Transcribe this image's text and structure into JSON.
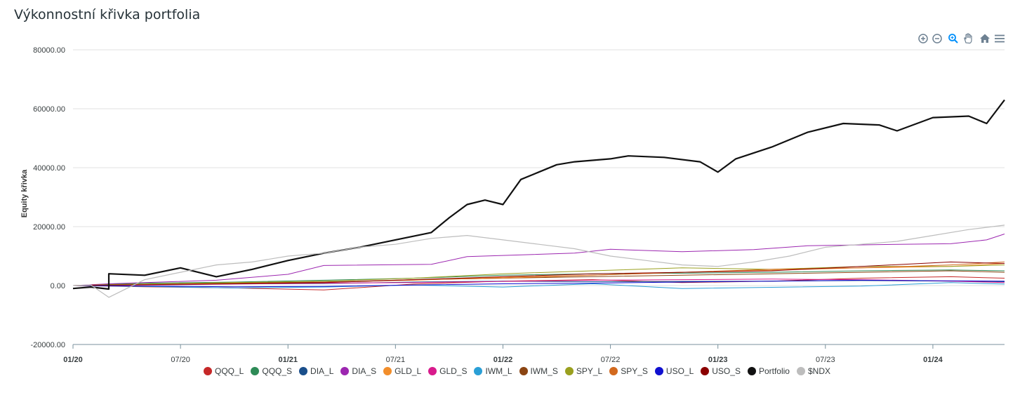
{
  "page": {
    "title": "Výkonnostní křivka portfolia"
  },
  "toolbar": {
    "items": [
      {
        "name": "zoom-in-icon"
      },
      {
        "name": "zoom-out-icon"
      },
      {
        "name": "selection-zoom-icon"
      },
      {
        "name": "pan-icon"
      },
      {
        "name": "reset-home-icon"
      },
      {
        "name": "menu-icon"
      }
    ]
  },
  "chart_data": {
    "type": "line",
    "title": "Výkonnostní křivka portfolia",
    "ylabel": "Equity křivka",
    "xlabel": "",
    "ylim": [
      -20000,
      80000
    ],
    "yticks": [
      80000,
      60000,
      40000,
      20000,
      0,
      -20000
    ],
    "ytick_labels": [
      "80000.00",
      "60000.00",
      "40000.00",
      "20000.00",
      "0.00",
      "-20000.00"
    ],
    "xlim": [
      "2020-01",
      "2024-05"
    ],
    "xticks": [
      {
        "date": "2020-01",
        "label": "01/20",
        "bold": true
      },
      {
        "date": "2020-07",
        "label": "07/20",
        "bold": false
      },
      {
        "date": "2021-01",
        "label": "01/21",
        "bold": true
      },
      {
        "date": "2021-07",
        "label": "07/21",
        "bold": false
      },
      {
        "date": "2022-01",
        "label": "01/22",
        "bold": true
      },
      {
        "date": "2022-07",
        "label": "07/22",
        "bold": false
      },
      {
        "date": "2023-01",
        "label": "01/23",
        "bold": true
      },
      {
        "date": "2023-07",
        "label": "07/23",
        "bold": false
      },
      {
        "date": "2024-01",
        "label": "01/24",
        "bold": true
      }
    ],
    "grid": true,
    "legend_position": "bottom",
    "series": [
      {
        "name": "QQQ_L",
        "color": "#c62828",
        "width": 1,
        "x": [
          "2020-01",
          "2020-05",
          "2020-10",
          "2021-03",
          "2021-08",
          "2022-01",
          "2022-06",
          "2022-11",
          "2023-04",
          "2023-09",
          "2024-02",
          "2024-05"
        ],
        "y": [
          0,
          -400,
          -800,
          -1500,
          500,
          1500,
          2000,
          1000,
          1500,
          2500,
          3000,
          2500
        ]
      },
      {
        "name": "QQQ_S",
        "color": "#2e8b57",
        "width": 1,
        "x": [
          "2020-01",
          "2020-05",
          "2020-10",
          "2021-03",
          "2021-08",
          "2022-01",
          "2022-06",
          "2022-11",
          "2023-04",
          "2023-09",
          "2024-02",
          "2024-05"
        ],
        "y": [
          0,
          800,
          1200,
          1800,
          2500,
          3500,
          4000,
          4200,
          4500,
          5000,
          5300,
          5000
        ]
      },
      {
        "name": "DIA_L",
        "color": "#1a4f8b",
        "width": 1,
        "x": [
          "2020-01",
          "2020-05",
          "2020-10",
          "2021-03",
          "2021-08",
          "2022-01",
          "2022-06",
          "2022-11",
          "2023-04",
          "2023-09",
          "2024-02",
          "2024-05"
        ],
        "y": [
          0,
          300,
          600,
          700,
          1200,
          1500,
          1300,
          1400,
          1500,
          1700,
          1500,
          1300
        ]
      },
      {
        "name": "DIA_S",
        "color": "#9c27b0",
        "width": 1,
        "x": [
          "2020-01",
          "2020-03",
          "2020-09",
          "2021-01",
          "2021-03",
          "2021-09",
          "2021-11",
          "2022-05",
          "2022-07",
          "2022-11",
          "2023-03",
          "2023-06",
          "2023-10",
          "2024-02",
          "2024-04",
          "2024-05"
        ],
        "y": [
          0,
          600,
          1800,
          3800,
          6800,
          7200,
          9800,
          11000,
          12300,
          11500,
          12200,
          13500,
          13900,
          14200,
          15500,
          17500
        ]
      },
      {
        "name": "GLD_L",
        "color": "#f28e2b",
        "width": 1,
        "x": [
          "2020-01",
          "2020-05",
          "2020-10",
          "2021-03",
          "2021-08",
          "2022-01",
          "2022-06",
          "2022-11",
          "2023-04",
          "2023-09",
          "2024-02",
          "2024-05"
        ],
        "y": [
          0,
          500,
          1000,
          1200,
          1800,
          2800,
          3500,
          4500,
          5200,
          6000,
          6500,
          7500
        ]
      },
      {
        "name": "GLD_S",
        "color": "#d81b8c",
        "width": 1,
        "x": [
          "2020-01",
          "2020-05",
          "2020-10",
          "2021-03",
          "2021-08",
          "2022-01",
          "2022-06",
          "2022-11",
          "2023-04",
          "2023-09",
          "2024-02",
          "2024-05"
        ],
        "y": [
          0,
          200,
          500,
          800,
          1000,
          1400,
          1800,
          2000,
          2200,
          2000,
          1500,
          1000
        ]
      },
      {
        "name": "IWM_L",
        "color": "#2a9fd6",
        "width": 1,
        "x": [
          "2020-01",
          "2020-05",
          "2020-10",
          "2021-03",
          "2021-08",
          "2022-01",
          "2022-06",
          "2022-11",
          "2023-04",
          "2023-09",
          "2024-02",
          "2024-05"
        ],
        "y": [
          0,
          -300,
          -800,
          -500,
          200,
          -500,
          600,
          -1000,
          -600,
          -200,
          1000,
          500
        ]
      },
      {
        "name": "IWM_S",
        "color": "#8b4513",
        "width": 1,
        "x": [
          "2020-01",
          "2020-05",
          "2020-10",
          "2021-03",
          "2021-08",
          "2022-01",
          "2022-06",
          "2022-11",
          "2023-04",
          "2023-09",
          "2024-02",
          "2024-05"
        ],
        "y": [
          0,
          400,
          800,
          1200,
          2000,
          2500,
          3000,
          3500,
          4000,
          4500,
          5000,
          4500
        ]
      },
      {
        "name": "SPY_L",
        "color": "#9aa01f",
        "width": 1,
        "x": [
          "2020-01",
          "2020-05",
          "2020-10",
          "2021-03",
          "2021-08",
          "2022-01",
          "2022-06",
          "2022-11",
          "2023-04",
          "2023-09",
          "2024-02",
          "2024-05"
        ],
        "y": [
          0,
          500,
          1000,
          1500,
          2500,
          4000,
          5000,
          6000,
          5500,
          6500,
          6500,
          7000
        ]
      },
      {
        "name": "SPY_S",
        "color": "#d2691e",
        "width": 1,
        "x": [
          "2020-01",
          "2020-05",
          "2020-10",
          "2021-03",
          "2021-08",
          "2022-01",
          "2022-06",
          "2022-11",
          "2023-04",
          "2023-09",
          "2024-02",
          "2024-05"
        ],
        "y": [
          0,
          300,
          700,
          1000,
          2000,
          2500,
          3500,
          4500,
          5500,
          6000,
          7000,
          8000
        ]
      },
      {
        "name": "USO_L",
        "color": "#1010d0",
        "width": 1,
        "x": [
          "2020-01",
          "2020-05",
          "2020-10",
          "2021-03",
          "2021-08",
          "2022-01",
          "2022-06",
          "2022-11",
          "2023-04",
          "2023-09",
          "2024-02",
          "2024-05"
        ],
        "y": [
          0,
          -200,
          -400,
          -300,
          200,
          600,
          800,
          1200,
          1500,
          1800,
          1600,
          1500
        ]
      },
      {
        "name": "USO_S",
        "color": "#8b0000",
        "width": 1,
        "x": [
          "2020-01",
          "2020-05",
          "2020-10",
          "2021-03",
          "2021-08",
          "2022-01",
          "2022-06",
          "2022-11",
          "2023-04",
          "2023-09",
          "2024-02",
          "2024-05"
        ],
        "y": [
          0,
          300,
          600,
          1000,
          2000,
          3000,
          4000,
          4500,
          5000,
          6500,
          8000,
          7500
        ]
      },
      {
        "name": "Portfolio",
        "color": "#111111",
        "width": 2.2,
        "x": [
          "2020-01",
          "2020-02",
          "2020-03",
          "2020-03",
          "2020-05",
          "2020-07",
          "2020-09",
          "2020-11",
          "2021-01",
          "2021-03",
          "2021-05",
          "2021-07",
          "2021-09",
          "2021-10",
          "2021-11",
          "2021-12",
          "2022-01",
          "2022-02",
          "2022-03",
          "2022-04",
          "2022-05",
          "2022-07",
          "2022-08",
          "2022-10",
          "2022-12",
          "2023-01",
          "2023-02",
          "2023-04",
          "2023-06",
          "2023-08",
          "2023-10",
          "2023-11",
          "2024-01",
          "2024-03",
          "2024-04",
          "2024-05"
        ],
        "y": [
          -1000,
          -500,
          -1200,
          4000,
          3500,
          6000,
          3000,
          5500,
          8500,
          11000,
          13000,
          15500,
          18000,
          23000,
          27500,
          29000,
          27500,
          36000,
          38500,
          41000,
          42000,
          43000,
          44000,
          43500,
          42000,
          38500,
          43000,
          47000,
          52000,
          55000,
          54500,
          52500,
          57000,
          57500,
          55000,
          63000
        ]
      },
      {
        "name": "$NDX",
        "color": "#bdbdbd",
        "width": 1.2,
        "x": [
          "2020-01",
          "2020-02",
          "2020-03",
          "2020-05",
          "2020-07",
          "2020-09",
          "2020-11",
          "2021-01",
          "2021-03",
          "2021-05",
          "2021-07",
          "2021-09",
          "2021-11",
          "2022-01",
          "2022-03",
          "2022-05",
          "2022-07",
          "2022-09",
          "2022-11",
          "2023-01",
          "2023-03",
          "2023-05",
          "2023-07",
          "2023-09",
          "2023-11",
          "2024-01",
          "2024-03",
          "2024-05"
        ],
        "y": [
          0,
          200,
          -4000,
          2000,
          4500,
          7000,
          8000,
          10000,
          11000,
          13000,
          14000,
          16000,
          17000,
          15500,
          14000,
          12500,
          10000,
          8500,
          7000,
          6500,
          8000,
          10000,
          13000,
          14000,
          15000,
          17000,
          19000,
          20500
        ]
      }
    ]
  }
}
